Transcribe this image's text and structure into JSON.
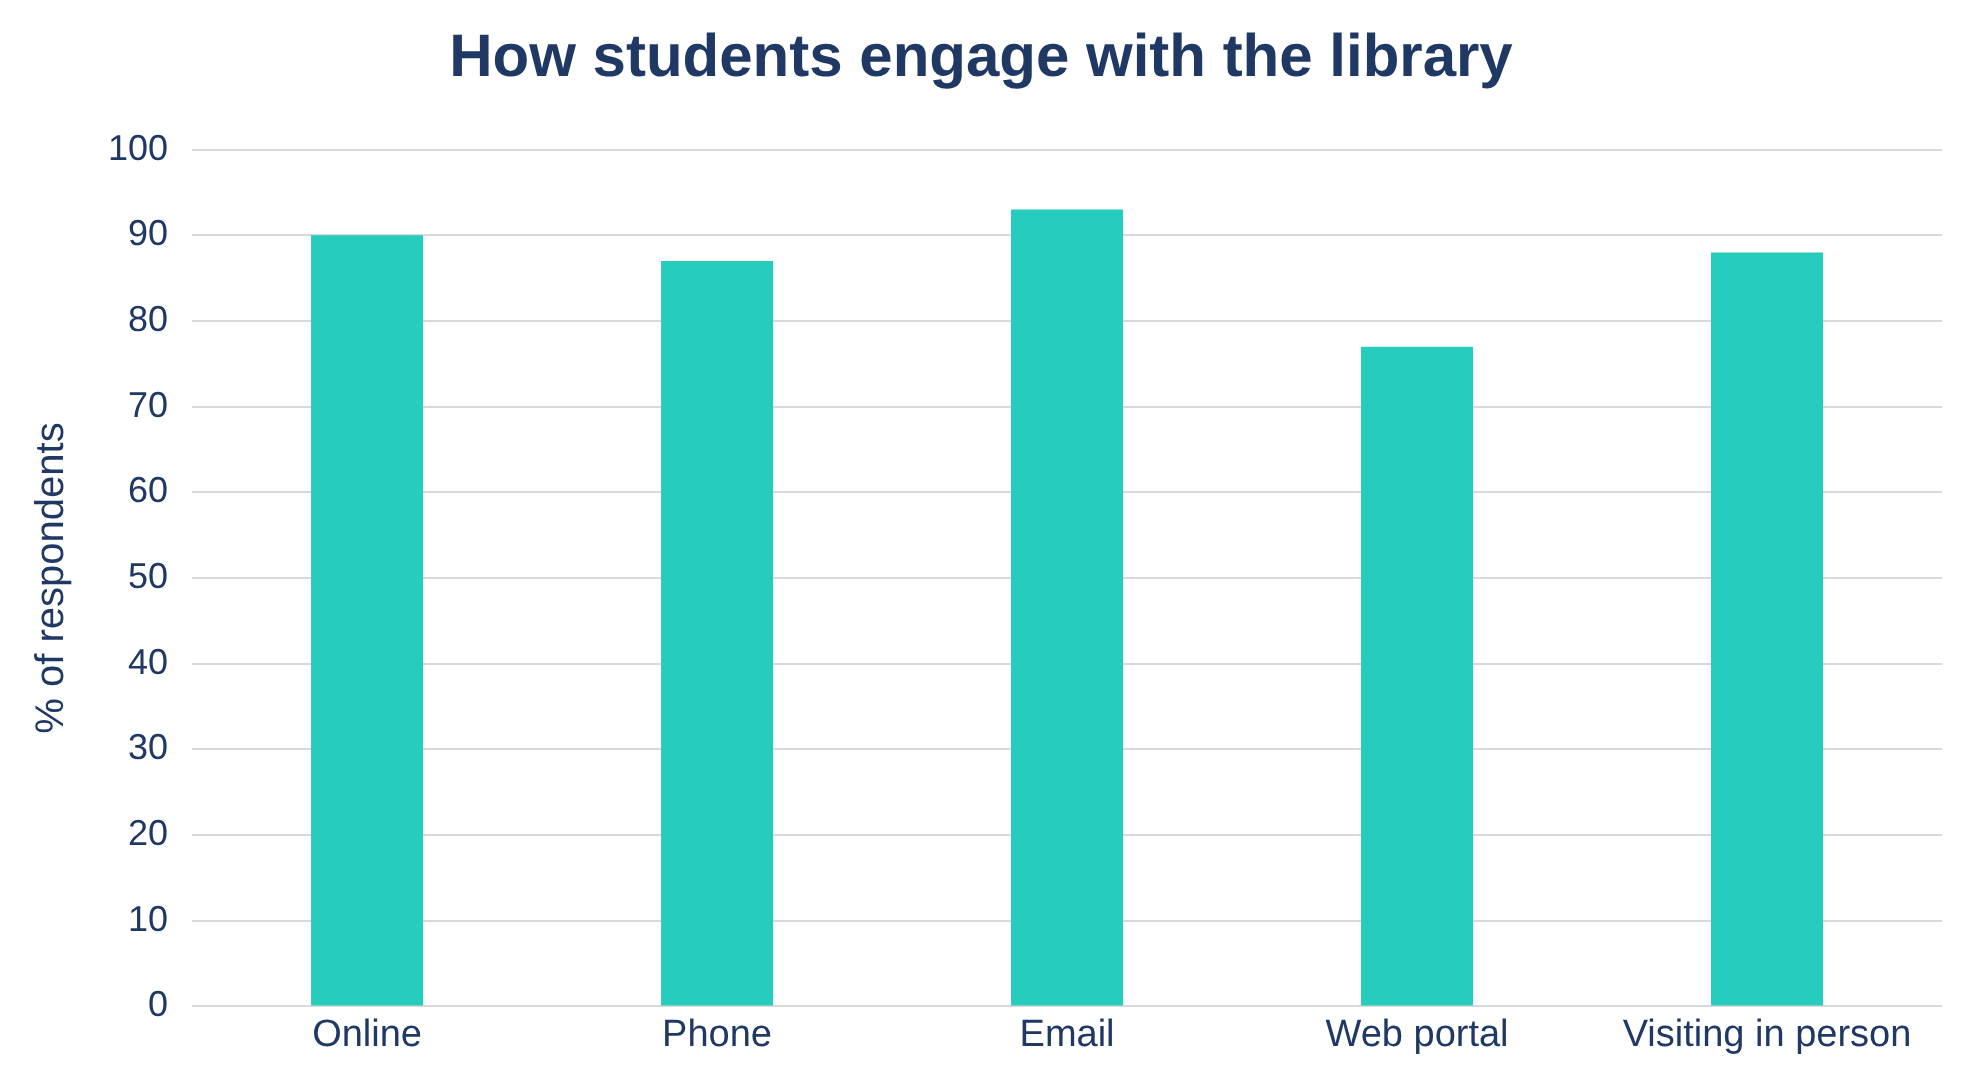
{
  "chart_data": {
    "type": "bar",
    "title": "How students engage with the library",
    "ylabel": "% of respondents",
    "categories": [
      "Online",
      "Phone",
      "Email",
      "Web portal",
      "Visiting in person"
    ],
    "values": [
      90,
      87,
      93,
      77,
      88
    ],
    "color": "#26cdbd",
    "ylim": [
      0,
      100
    ],
    "yticks": [
      0,
      10,
      20,
      30,
      40,
      50,
      60,
      70,
      80,
      90,
      100
    ],
    "grid": "y"
  }
}
